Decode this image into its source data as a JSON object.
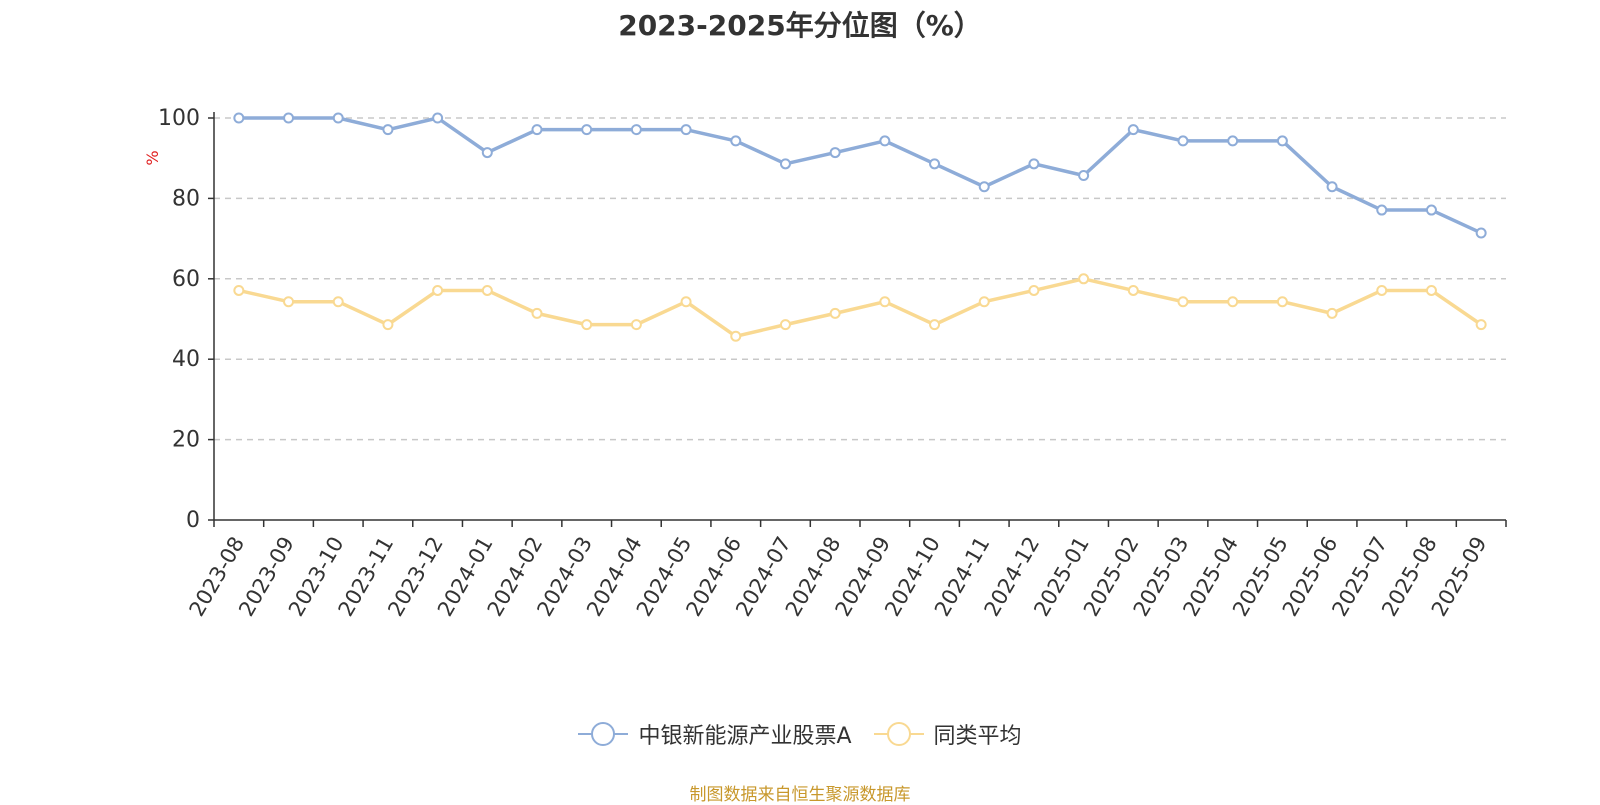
{
  "chart_data": {
    "type": "line",
    "title": "2023-2025年分位图（%）",
    "ylabel": "%",
    "xlabel": "",
    "ylim": [
      0,
      100
    ],
    "yticks": [
      0,
      20,
      40,
      60,
      80,
      100
    ],
    "grid": true,
    "legend_position": "bottom",
    "categories": [
      "2023-08",
      "2023-09",
      "2023-10",
      "2023-11",
      "2023-12",
      "2024-01",
      "2024-02",
      "2024-03",
      "2024-04",
      "2024-05",
      "2024-06",
      "2024-07",
      "2024-08",
      "2024-09",
      "2024-10",
      "2024-11",
      "2024-12",
      "2025-01",
      "2025-02",
      "2025-03",
      "2025-04",
      "2025-05",
      "2025-06",
      "2025-07",
      "2025-08",
      "2025-09"
    ],
    "series": [
      {
        "name": "中银新能源产业股票A",
        "color": "#8eacd8",
        "values": [
          100,
          100,
          100,
          97.1,
          100,
          91.4,
          97.1,
          97.1,
          97.1,
          97.1,
          94.3,
          88.6,
          91.4,
          94.3,
          88.6,
          82.9,
          88.6,
          85.7,
          97.1,
          94.3,
          94.3,
          94.3,
          82.9,
          77.1,
          77.1,
          71.4
        ]
      },
      {
        "name": "同类平均",
        "color": "#f9d992",
        "values": [
          57.1,
          54.3,
          54.3,
          48.6,
          57.1,
          57.1,
          51.4,
          48.6,
          48.6,
          54.3,
          45.7,
          48.6,
          51.4,
          54.3,
          48.6,
          54.3,
          57.1,
          60.0,
          57.1,
          54.3,
          54.3,
          54.3,
          51.4,
          57.1,
          57.1,
          48.6
        ]
      }
    ],
    "source": "制图数据来自恒生聚源数据库"
  },
  "colors": {
    "axis": "#333333",
    "grid": "#c8c8c8",
    "ylabel": "#e02020",
    "source": "#c8982c"
  }
}
